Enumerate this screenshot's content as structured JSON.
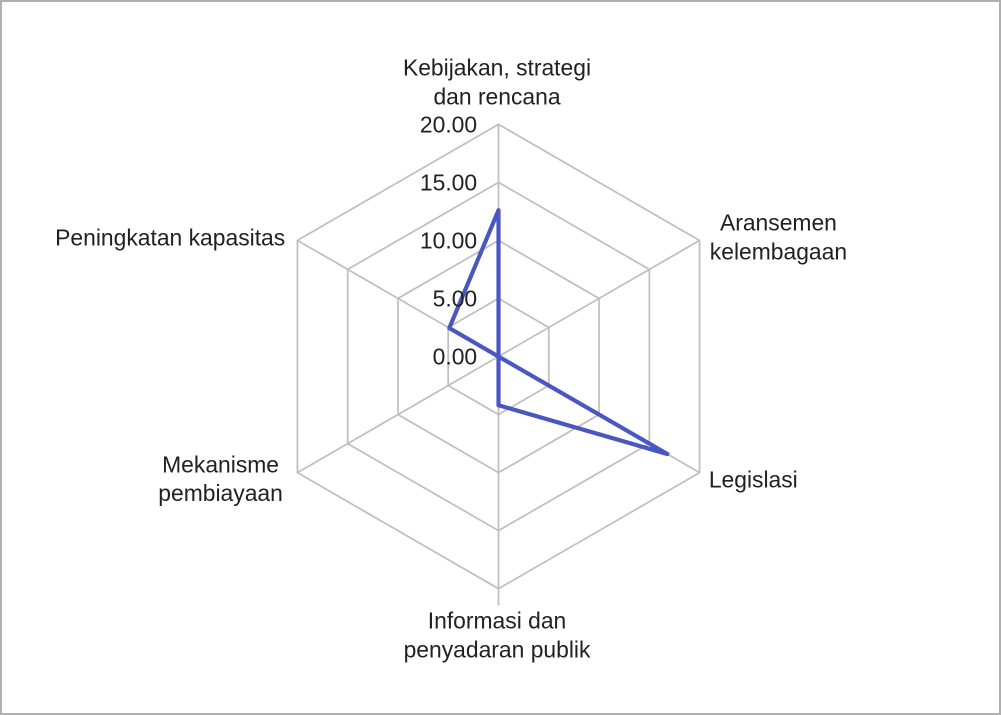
{
  "window": {
    "background": "#ffffff",
    "border_color": "#b0b0b0"
  },
  "chart_data": {
    "type": "radar",
    "categories": [
      "Kebijakan, strategi dan rencana",
      "Aransemen kelembagaan",
      "Legislasi",
      "Informasi dan penyadaran publik",
      "Mekanisme pembiayaan",
      "Peningkatan kapasitas"
    ],
    "category_label_lines": [
      [
        "Kebijakan, strategi",
        "dan rencana"
      ],
      [
        "Aransemen",
        "kelembagaan"
      ],
      [
        "Legislasi"
      ],
      [
        "Informasi dan",
        "penyadaran publik"
      ],
      [
        "Mekanisme",
        "pembiayaan"
      ],
      [
        "Peningkatan kapasitas"
      ]
    ],
    "series": [
      {
        "values": [
          12.6,
          0,
          16.8,
          4.2,
          0,
          4.9
        ]
      }
    ],
    "axis": {
      "min": 0,
      "max": 20,
      "tick_step": 5,
      "tick_values": [
        20,
        15,
        10,
        5,
        0
      ],
      "tick_labels": [
        "20.00",
        "15.00",
        "10.00",
        "5.00",
        "0.00"
      ]
    },
    "grid": true,
    "legend": "none",
    "colors": {
      "series_line": "#4a57c1",
      "grid_line": "#c0c0c0",
      "label_text": "#212121"
    }
  }
}
